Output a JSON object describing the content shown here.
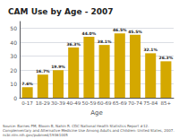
{
  "chart_data": {
    "type": "bar",
    "title": "CAM Use by Age - 2007",
    "categories": [
      "0-17",
      "18-29",
      "30-39",
      "40-49",
      "50-59",
      "60-69",
      "65-69",
      "70-74",
      "75-84",
      "85+"
    ],
    "values": [
      7.6,
      16.7,
      19.9,
      36.3,
      44.0,
      38.1,
      46.5,
      45.5,
      32.1,
      26.3
    ],
    "value_labels": [
      "7.6%",
      "16.7%",
      "19.9%",
      "36.3%",
      "44.0%",
      "38.1%",
      "46.5%",
      "45.5%",
      "32.1%",
      "26.3%"
    ],
    "data_labels": true,
    "color": "#D4A800",
    "xlabel": "Age",
    "ylim": [
      0,
      55
    ],
    "yticks": [
      0,
      10,
      20,
      30,
      40,
      50
    ],
    "grid": true,
    "annotations": [
      "Source: Barnes PM, Bloom B, Nahin R. CDC National Health Statistics Report #12. Complementary and Alternative Medicine Use Among Adults and Children: United States, 2007.\nncbi.nlm.nih.gov/pubmed/19361005"
    ]
  }
}
